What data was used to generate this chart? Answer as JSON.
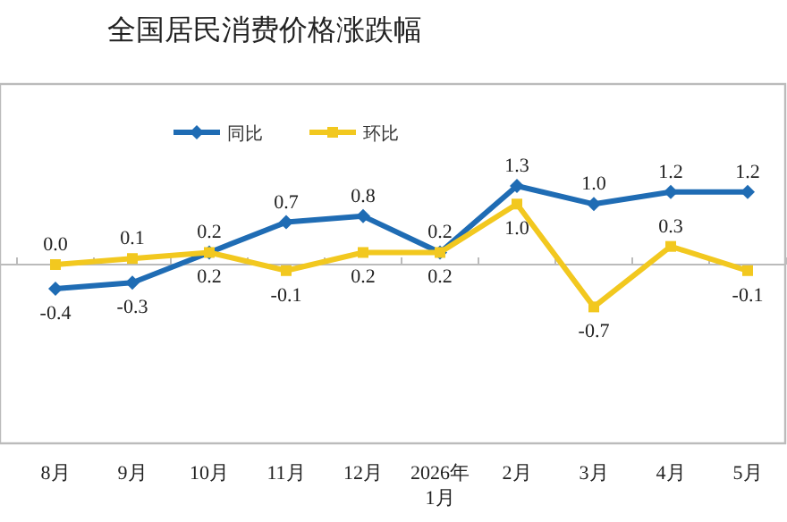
{
  "chart_data": {
    "type": "line",
    "title": "全国居民消费价格涨跌幅",
    "categories": [
      "8月",
      "9月",
      "10月",
      "11月",
      "12月",
      "2026年\n1月",
      "2月",
      "3月",
      "4月",
      "5月"
    ],
    "series": [
      {
        "name": "同比",
        "color": "#1f6cb4",
        "marker": "diamond",
        "values": [
          -0.4,
          -0.3,
          0.2,
          0.7,
          0.8,
          0.2,
          1.3,
          1.0,
          1.2,
          1.2
        ],
        "value_labels": [
          "-0.4",
          "-0.3",
          "0.2",
          "0.7",
          "0.8",
          "0.2",
          "1.3",
          "1.0",
          "1.2",
          "1.2"
        ]
      },
      {
        "name": "环比",
        "color": "#f2c81f",
        "marker": "square",
        "values": [
          0.0,
          0.1,
          0.2,
          -0.1,
          0.2,
          0.2,
          1.0,
          -0.7,
          0.3,
          -0.1
        ],
        "value_labels": [
          "0.0",
          "0.1",
          "0.2",
          "-0.1",
          "0.2",
          "0.2",
          "1.0",
          "-0.7",
          "0.3",
          "-0.1"
        ]
      }
    ],
    "legend": "top"
  }
}
